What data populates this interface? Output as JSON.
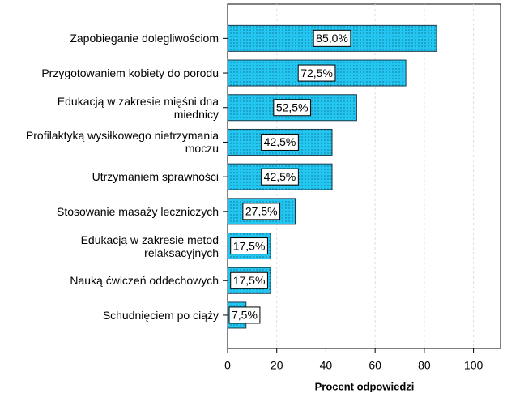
{
  "chart_data": {
    "type": "bar",
    "orientation": "horizontal",
    "xlabel": "Procent odpowiedzi",
    "categories": [
      "Zapobieganie dolegliwościom",
      "Przygotowaniem kobiety do porodu",
      "Edukacją w zakresie mięśni dna\nmiednicy",
      "Profilaktyką wysiłkowego nietrzymania\nmoczu",
      "Utrzymaniem sprawności",
      "Stosowanie masaży leczniczych",
      "Edukacją w zakresie metod\nrelaksacyjnych",
      "Nauką ćwiczeń oddechowych",
      "Schudnięciem po ciąży"
    ],
    "values": [
      85.0,
      72.5,
      52.5,
      42.5,
      42.5,
      27.5,
      17.5,
      17.5,
      7.5
    ],
    "value_labels": [
      "85,0%",
      "72,5%",
      "52,5%",
      "42,5%",
      "42,5%",
      "27,5%",
      "17,5%",
      "17,5%",
      "7,5%"
    ],
    "color": "#22c6f0",
    "xlim": [
      0,
      111
    ],
    "xticks": [
      0,
      20,
      40,
      60,
      80,
      100
    ],
    "grid": true
  }
}
